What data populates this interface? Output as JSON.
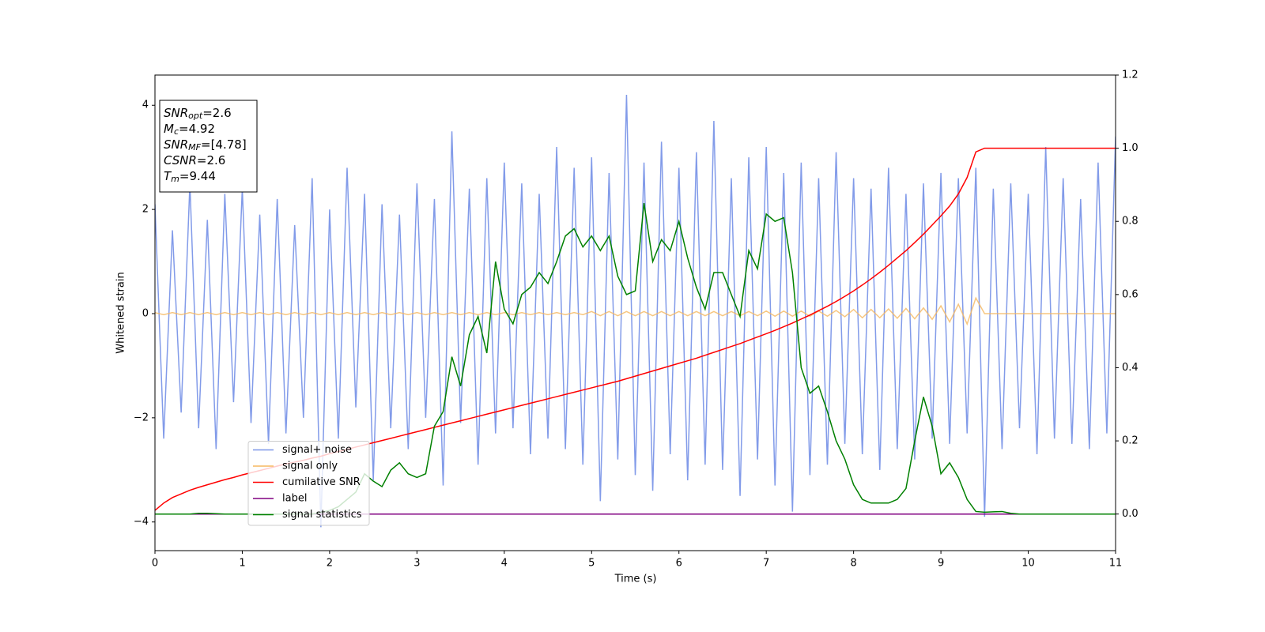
{
  "chart_data": {
    "type": "line",
    "xlabel": "Time (s)",
    "ylabel": "Whitened strain",
    "xlim": [
      0,
      11
    ],
    "xticks": [
      0,
      1,
      2,
      3,
      4,
      5,
      6,
      7,
      8,
      9,
      10,
      11
    ],
    "ylim": [
      -4.55,
      4.58
    ],
    "yticks": [
      {
        "value": -4,
        "label": "−4"
      },
      {
        "value": -2,
        "label": "−2"
      },
      0,
      2,
      4
    ],
    "y2lim": [
      -0.1,
      1.2
    ],
    "y2ticks": [
      {
        "value": 0,
        "label": "0.0"
      },
      0.2,
      0.4,
      0.6,
      0.8,
      {
        "value": 1,
        "label": "1.0"
      },
      1.2
    ],
    "legend": "lower left",
    "annotations": [
      {
        "name": "SNR",
        "sub": "opt",
        "value": "=2.6"
      },
      {
        "name": "M",
        "sub": "c",
        "value": "=4.92"
      },
      {
        "name": "SNR",
        "sub": "MF",
        "value": "=[4.78]"
      },
      {
        "name": "CSNR",
        "value": "=2.6"
      },
      {
        "name": "T",
        "sub": "m",
        "value": "=9.44"
      }
    ],
    "x": [
      0,
      0.1,
      0.2,
      0.3,
      0.4,
      0.5,
      0.6,
      0.7,
      0.8,
      0.9,
      1,
      1.1,
      1.2,
      1.3,
      1.4,
      1.5,
      1.6,
      1.7,
      1.8,
      1.9,
      2,
      2.1,
      2.2,
      2.3,
      2.4,
      2.5,
      2.6,
      2.7,
      2.8,
      2.9,
      3,
      3.1,
      3.2,
      3.3,
      3.4,
      3.5,
      3.6,
      3.7,
      3.8,
      3.9,
      4,
      4.1,
      4.2,
      4.3,
      4.4,
      4.5,
      4.6,
      4.7,
      4.8,
      4.9,
      5,
      5.1,
      5.2,
      5.3,
      5.4,
      5.5,
      5.6,
      5.7,
      5.8,
      5.9,
      6,
      6.1,
      6.2,
      6.3,
      6.4,
      6.5,
      6.6,
      6.7,
      6.8,
      6.9,
      7,
      7.1,
      7.2,
      7.3,
      7.4,
      7.5,
      7.6,
      7.7,
      7.8,
      7.9,
      8,
      8.1,
      8.2,
      8.3,
      8.4,
      8.5,
      8.6,
      8.7,
      8.8,
      8.9,
      9,
      9.1,
      9.2,
      9.3,
      9.4,
      9.5,
      9.6,
      9.7,
      9.8,
      9.9,
      10,
      10.1,
      10.2,
      10.3,
      10.4,
      10.5,
      10.6,
      10.7,
      10.8,
      10.9,
      11
    ],
    "series": [
      {
        "name": "signal+ noise",
        "color": "#7b96e8",
        "values": [
          2.1,
          -2.4,
          1.6,
          -1.9,
          2.5,
          -2.2,
          1.8,
          -2.6,
          2.3,
          -1.7,
          2.4,
          -2.1,
          1.9,
          -2.5,
          2.2,
          -2.3,
          1.7,
          -2.0,
          2.6,
          -4.1,
          2.0,
          -2.4,
          2.8,
          -1.8,
          2.3,
          -3.2,
          2.1,
          -2.2,
          1.9,
          -2.6,
          2.5,
          -2.0,
          2.2,
          -3.3,
          3.5,
          -2.1,
          2.4,
          -2.9,
          2.6,
          -2.3,
          2.9,
          -2.2,
          2.5,
          -2.7,
          2.3,
          -2.4,
          3.2,
          -2.6,
          2.8,
          -2.9,
          3.0,
          -3.6,
          2.7,
          -2.8,
          4.2,
          -3.1,
          2.9,
          -3.4,
          3.3,
          -2.7,
          2.8,
          -3.2,
          3.1,
          -2.9,
          3.7,
          -3.0,
          2.6,
          -3.5,
          3.0,
          -2.8,
          3.2,
          -3.3,
          2.7,
          -3.8,
          2.9,
          -3.1,
          2.6,
          -2.9,
          3.1,
          -2.5,
          2.6,
          -2.7,
          2.4,
          -3.0,
          2.8,
          -2.6,
          2.3,
          -2.8,
          2.5,
          -2.4,
          2.7,
          -2.5,
          2.6,
          -2.3,
          2.8,
          -3.9,
          2.4,
          -2.6,
          2.5,
          -2.2,
          2.3,
          -2.7,
          3.2,
          -2.4,
          2.6,
          -2.5,
          2.2,
          -2.6,
          2.9,
          -2.3,
          3.4
        ]
      },
      {
        "name": "signal only",
        "color": "#f5b860",
        "values": [
          0.02,
          -0.02,
          0.02,
          -0.02,
          0.02,
          -0.02,
          0.02,
          -0.02,
          0.02,
          -0.02,
          0.02,
          -0.02,
          0.02,
          -0.02,
          0.02,
          -0.02,
          0.02,
          -0.02,
          0.02,
          -0.02,
          0.02,
          -0.02,
          0.02,
          -0.02,
          0.02,
          -0.02,
          0.02,
          -0.02,
          0.02,
          -0.02,
          0.02,
          -0.02,
          0.02,
          -0.02,
          0.02,
          -0.02,
          0.02,
          -0.02,
          0.02,
          -0.02,
          0.02,
          -0.02,
          0.02,
          -0.02,
          0.02,
          -0.02,
          0.02,
          -0.02,
          0.02,
          -0.02,
          0.04,
          -0.04,
          0.04,
          -0.04,
          0.04,
          -0.04,
          0.04,
          -0.04,
          0.04,
          -0.04,
          0.04,
          -0.04,
          0.04,
          -0.04,
          0.04,
          -0.04,
          0.04,
          -0.04,
          0.04,
          -0.04,
          0.05,
          -0.05,
          0.05,
          -0.05,
          0.05,
          -0.05,
          0.05,
          -0.05,
          0.06,
          -0.06,
          0.08,
          -0.08,
          0.08,
          -0.08,
          0.09,
          -0.09,
          0.1,
          -0.1,
          0.11,
          -0.11,
          0.15,
          -0.16,
          0.18,
          -0.2,
          0.3,
          0,
          0,
          0,
          0,
          0,
          0,
          0,
          0,
          0,
          0,
          0,
          0,
          0,
          0,
          0,
          0
        ]
      },
      {
        "name": "cumilative SNR",
        "color": "red",
        "axis": "y2",
        "values": [
          0.01,
          0.03,
          0.045,
          0.055,
          0.065,
          0.073,
          0.08,
          0.087,
          0.094,
          0.1,
          0.107,
          0.113,
          0.119,
          0.125,
          0.131,
          0.137,
          0.142,
          0.147,
          0.153,
          0.158,
          0.165,
          0.171,
          0.177,
          0.183,
          0.189,
          0.195,
          0.201,
          0.207,
          0.213,
          0.219,
          0.225,
          0.231,
          0.237,
          0.243,
          0.249,
          0.255,
          0.261,
          0.267,
          0.273,
          0.279,
          0.285,
          0.291,
          0.297,
          0.303,
          0.309,
          0.315,
          0.321,
          0.327,
          0.333,
          0.339,
          0.345,
          0.351,
          0.357,
          0.363,
          0.37,
          0.377,
          0.384,
          0.391,
          0.398,
          0.405,
          0.412,
          0.419,
          0.426,
          0.434,
          0.442,
          0.45,
          0.458,
          0.466,
          0.475,
          0.484,
          0.493,
          0.502,
          0.512,
          0.522,
          0.533,
          0.544,
          0.556,
          0.568,
          0.581,
          0.595,
          0.61,
          0.626,
          0.643,
          0.661,
          0.68,
          0.7,
          0.72,
          0.742,
          0.765,
          0.79,
          0.815,
          0.842,
          0.875,
          0.92,
          0.99,
          1,
          1,
          1,
          1,
          1,
          1,
          1,
          1,
          1,
          1,
          1,
          1,
          1,
          1,
          1,
          1
        ]
      },
      {
        "name": "label",
        "color": "purple",
        "axis": "y2",
        "values": [
          0,
          0,
          0,
          0,
          0,
          0,
          0,
          0,
          0,
          0,
          0,
          0,
          0,
          0,
          0,
          0,
          0,
          0,
          0,
          0,
          0,
          0,
          0,
          0,
          0,
          0,
          0,
          0,
          0,
          0,
          0,
          0,
          0,
          0,
          0,
          0,
          0,
          0,
          0,
          0,
          0,
          0,
          0,
          0,
          0,
          0,
          0,
          0,
          0,
          0,
          0,
          0,
          0,
          0,
          0,
          0,
          0,
          0,
          0,
          0,
          0,
          0,
          0,
          0,
          0,
          0,
          0,
          0,
          0,
          0,
          0,
          0,
          0,
          0,
          0,
          0,
          0,
          0,
          0,
          0,
          0,
          0,
          0,
          0,
          0,
          0,
          0,
          0,
          0,
          0,
          0,
          0,
          0,
          0,
          0,
          0,
          0,
          0,
          0,
          0,
          0,
          0,
          0,
          0,
          0,
          0,
          0,
          0,
          0,
          0,
          0
        ]
      },
      {
        "name": "signal statistics",
        "color": "green",
        "axis": "y2",
        "values": [
          0,
          0,
          0,
          0,
          0,
          0.002,
          0.002,
          0.001,
          0,
          0,
          0,
          0,
          0,
          0,
          0,
          0,
          0,
          0,
          0,
          0.005,
          0.01,
          0.02,
          0.04,
          0.06,
          0.11,
          0.09,
          0.075,
          0.12,
          0.14,
          0.11,
          0.1,
          0.11,
          0.24,
          0.28,
          0.43,
          0.35,
          0.49,
          0.54,
          0.44,
          0.69,
          0.56,
          0.52,
          0.6,
          0.62,
          0.66,
          0.63,
          0.69,
          0.76,
          0.78,
          0.73,
          0.76,
          0.72,
          0.76,
          0.65,
          0.6,
          0.61,
          0.85,
          0.69,
          0.75,
          0.72,
          0.8,
          0.7,
          0.62,
          0.56,
          0.66,
          0.66,
          0.6,
          0.54,
          0.72,
          0.67,
          0.82,
          0.8,
          0.81,
          0.66,
          0.4,
          0.33,
          0.35,
          0.28,
          0.2,
          0.15,
          0.08,
          0.04,
          0.03,
          0.03,
          0.03,
          0.04,
          0.07,
          0.2,
          0.32,
          0.24,
          0.11,
          0.14,
          0.1,
          0.04,
          0.007,
          0.005,
          0.006,
          0.007,
          0.002,
          0,
          0,
          0,
          0,
          0,
          0,
          0,
          0,
          0,
          0,
          0,
          0
        ]
      }
    ]
  }
}
